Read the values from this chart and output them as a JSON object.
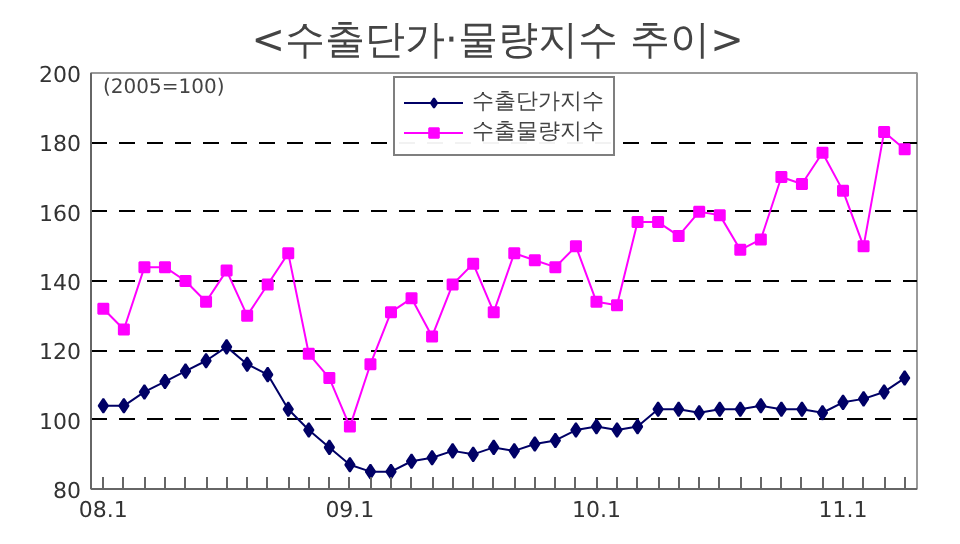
{
  "chart_data": {
    "type": "line",
    "title": "<수출단가·물량지수  추이>",
    "annotations": [
      "(2005=100)"
    ],
    "categories": [
      "08.1",
      null,
      null,
      null,
      null,
      null,
      null,
      null,
      null,
      null,
      null,
      null,
      "09.1",
      null,
      null,
      null,
      null,
      null,
      null,
      null,
      null,
      null,
      null,
      null,
      "10.1",
      null,
      null,
      null,
      null,
      null,
      null,
      null,
      null,
      null,
      null,
      null,
      "11.1",
      null,
      null,
      null
    ],
    "series": [
      {
        "name": "수출단가지수",
        "color": "#000066",
        "marker": "diamond",
        "values": [
          104,
          104,
          108,
          111,
          114,
          117,
          121,
          116,
          113,
          103,
          97,
          92,
          87,
          85,
          85,
          88,
          89,
          91,
          90,
          92,
          91,
          93,
          94,
          97,
          98,
          97,
          98,
          103,
          103,
          102,
          103,
          103,
          104,
          103,
          103,
          102,
          105,
          106,
          108,
          112
        ]
      },
      {
        "name": "수출물량지수",
        "color": "#ff00ff",
        "marker": "square",
        "values": [
          132,
          126,
          144,
          144,
          140,
          134,
          143,
          130,
          139,
          148,
          119,
          112,
          98,
          116,
          131,
          135,
          124,
          139,
          145,
          131,
          148,
          146,
          144,
          150,
          134,
          133,
          157,
          157,
          153,
          160,
          159,
          149,
          152,
          170,
          168,
          177,
          166,
          150,
          183,
          178
        ]
      }
    ],
    "ylim": [
      80,
      200
    ],
    "yticks": [
      80,
      100,
      120,
      140,
      160,
      180,
      200
    ],
    "grid": "y",
    "legend": "top",
    "line_style": "solid"
  }
}
